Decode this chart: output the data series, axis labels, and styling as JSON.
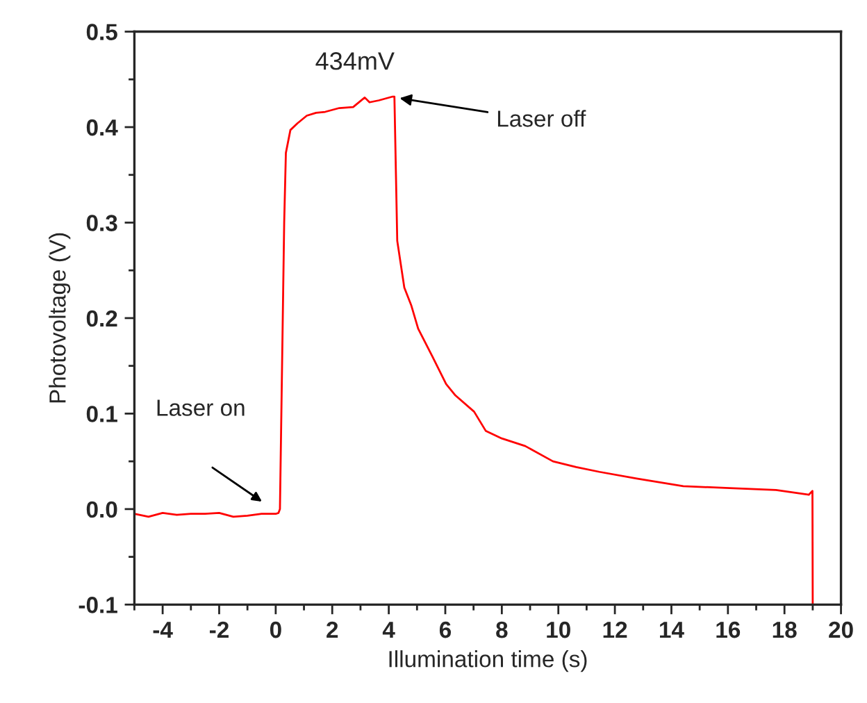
{
  "chart_data": {
    "type": "line",
    "xlabel": "Illumination time (s)",
    "ylabel": "Photovoltage (V)",
    "xlim": [
      -5,
      20
    ],
    "xticks": [
      -4,
      -2,
      0,
      2,
      4,
      6,
      8,
      10,
      12,
      14,
      16,
      18,
      20
    ],
    "ylim": [
      -0.1,
      0.5
    ],
    "yticks": [
      -0.1,
      {
        "value": 0,
        "label": "0.0"
      },
      0.1,
      0.2,
      0.3,
      0.4,
      0.5
    ],
    "grid": false,
    "legend": false,
    "marker": "none",
    "line_style": "solid",
    "series": [
      {
        "color": "#ff0000",
        "x": [
          -5,
          -4.5,
          -4,
          -3.5,
          -3,
          -2.5,
          -2,
          -1.5,
          -1,
          -0.5,
          0,
          0.1,
          0.15,
          0.2,
          0.3,
          0.36,
          0.52,
          0.77,
          1.1,
          1.43,
          1.75,
          2.25,
          2.74,
          3.15,
          3.32,
          3.65,
          4.14,
          4.2,
          4.3,
          4.55,
          4.8,
          5.04,
          5.54,
          6.03,
          6.36,
          7.02,
          7.43,
          8.0,
          8.83,
          9.81,
          10.63,
          11.45,
          12.77,
          14.42,
          16.06,
          17.7,
          18.86,
          18.99,
          19.0
        ],
        "values": [
          -0.005,
          -0.008,
          -0.004,
          -0.006,
          -0.005,
          -0.005,
          -0.004,
          -0.008,
          -0.007,
          -0.005,
          -0.005,
          -0.004,
          0.0,
          0.1,
          0.3,
          0.373,
          0.397,
          0.404,
          0.412,
          0.415,
          0.416,
          0.42,
          0.421,
          0.431,
          0.426,
          0.428,
          0.432,
          0.432,
          0.281,
          0.232,
          0.213,
          0.189,
          0.16,
          0.131,
          0.119,
          0.102,
          0.082,
          0.074,
          0.066,
          0.05,
          0.044,
          0.039,
          0.032,
          0.024,
          0.022,
          0.02,
          0.015,
          0.019,
          -0.1
        ]
      }
    ],
    "annotations": [
      "434mV",
      {
        "text": "Laser off",
        "x": 4.25,
        "y": 0.431
      },
      "Laser on"
    ]
  }
}
